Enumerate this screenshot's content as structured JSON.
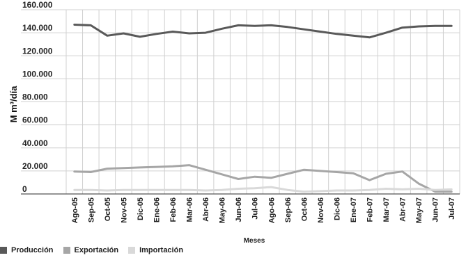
{
  "chart_data": {
    "type": "line",
    "title": "",
    "xlabel": "Meses",
    "ylabel": "M m³/día",
    "ylim": [
      0,
      160000
    ],
    "y_ticks": [
      "0",
      "20.000",
      "40.000",
      "60.000",
      "80.000",
      "100.000",
      "120.000",
      "140.000",
      "160.000"
    ],
    "grid": true,
    "legend_position": "bottom-left",
    "categories": [
      "Ago-05",
      "Sep-05",
      "Oct-05",
      "Nov-05",
      "Dic-05",
      "Ene-06",
      "Feb-06",
      "Mar-06",
      "Abr-06",
      "May-06",
      "Jun-06",
      "Jul-06",
      "Ago-06",
      "Sep-06",
      "Oct-06",
      "Nov-06",
      "Dic-06",
      "Ene-07",
      "Feb-07",
      "Mar-07",
      "Abr-07",
      "May-07",
      "Jun-07",
      "Jul-07"
    ],
    "series": [
      {
        "name": "Producción",
        "color": "#595959",
        "values": [
          147000,
          146500,
          137500,
          139500,
          136500,
          139000,
          141000,
          139500,
          140000,
          143500,
          146500,
          146000,
          146500,
          145000,
          143000,
          141000,
          139000,
          137500,
          136000,
          140000,
          144500,
          145500,
          146000,
          146000
        ]
      },
      {
        "name": "Exportación",
        "color": "#a6a6a6",
        "values": [
          19500,
          19000,
          22000,
          22500,
          23000,
          23500,
          24000,
          25000,
          21000,
          17000,
          13000,
          15000,
          14000,
          17500,
          21000,
          20000,
          19000,
          18000,
          12000,
          17500,
          19500,
          9000,
          2000,
          2000
        ]
      },
      {
        "name": "Importación",
        "color": "#d9d9d9",
        "values": [
          3500,
          3500,
          3000,
          3500,
          3500,
          3500,
          3500,
          3500,
          3000,
          3500,
          4500,
          5000,
          6000,
          3500,
          2000,
          2500,
          3000,
          3000,
          3500,
          4500,
          4000,
          4500,
          3500,
          4000
        ]
      }
    ]
  }
}
